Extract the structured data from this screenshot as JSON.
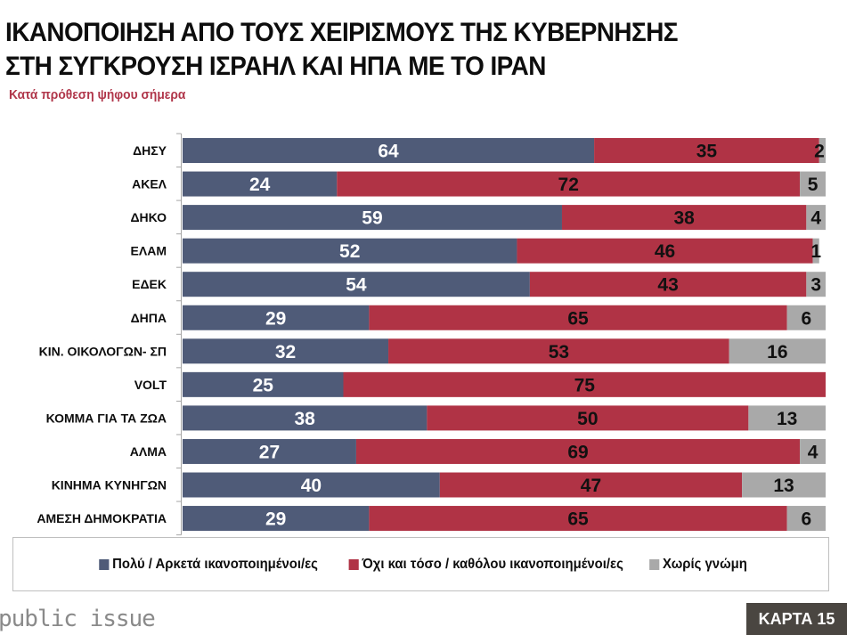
{
  "header": {
    "title_line1": "ΙΚΑΝΟΠΟΙΗΣΗ ΑΠΟ ΤΟΥΣ ΧΕΙΡΙΣΜΟΥΣ ΤΗΣ ΚΥΒΕΡΝΗΣΗΣ",
    "title_line2": "ΣΤΗ ΣΥΓΚΡΟΥΣΗ ΙΣΡΑΗΛ ΚΑΙ ΗΠΑ ΜΕ ΤΟ ΙΡΑΝ",
    "subtitle": "Κατά πρόθεση ψήφου σήμερα"
  },
  "footer": {
    "brand": "public issue",
    "badge": "ΚΑΡΤΑ 15"
  },
  "colors": {
    "satisfied": "#4f5b78",
    "not_satisfied": "#b03345",
    "no_opinion": "#a9a9a9",
    "subtitle": "#b0364a"
  },
  "chart_data": {
    "type": "bar",
    "orientation": "horizontal",
    "stacked": true,
    "title": "ΙΚΑΝΟΠΟΙΗΣΗ ΑΠΟ ΤΟΥΣ ΧΕΙΡΙΣΜΟΥΣ ΤΗΣ ΚΥΒΕΡΝΗΣΗΣ ΣΤΗ ΣΥΓΚΡΟΥΣΗ ΙΣΡΑΗΛ ΚΑΙ ΗΠΑ ΜΕ ΤΟ ΙΡΑΝ",
    "subtitle": "Κατά πρόθεση ψήφου σήμερα",
    "xlabel": "",
    "ylabel": "",
    "xlim": [
      0,
      100
    ],
    "grid": false,
    "legend_position": "bottom",
    "categories": [
      "ΔΗΣΥ",
      "ΑΚΕΛ",
      "ΔΗΚΟ",
      "ΕΛΑΜ",
      "ΕΔΕΚ",
      "ΔΗΠΑ",
      "ΚΙΝ. ΟΙΚΟΛΟΓΩΝ- ΣΠ",
      "VOLT",
      "ΚΟΜΜΑ ΓΙΑ ΤΑ ΖΩΑ",
      "ΑΛΜΑ",
      "ΚΙΝΗΜΑ ΚΥΝΗΓΩΝ",
      "ΑΜΕΣΗ ΔΗΜΟΚΡΑΤΙΑ"
    ],
    "series": [
      {
        "name": "Πολύ / Αρκετά ικανοποιημένοι/ες",
        "color": "#4f5b78",
        "values": [
          64,
          24,
          59,
          52,
          54,
          29,
          32,
          25,
          38,
          27,
          40,
          29
        ]
      },
      {
        "name": "Όχι και τόσο / καθόλου ικανοποιημένοι/ες",
        "color": "#b03345",
        "values": [
          35,
          72,
          38,
          46,
          43,
          65,
          53,
          75,
          50,
          69,
          47,
          65
        ]
      },
      {
        "name": "Χωρίς γνώμη",
        "color": "#a9a9a9",
        "values": [
          2,
          5,
          4,
          1,
          3,
          6,
          16,
          null,
          13,
          4,
          13,
          6
        ]
      }
    ]
  }
}
